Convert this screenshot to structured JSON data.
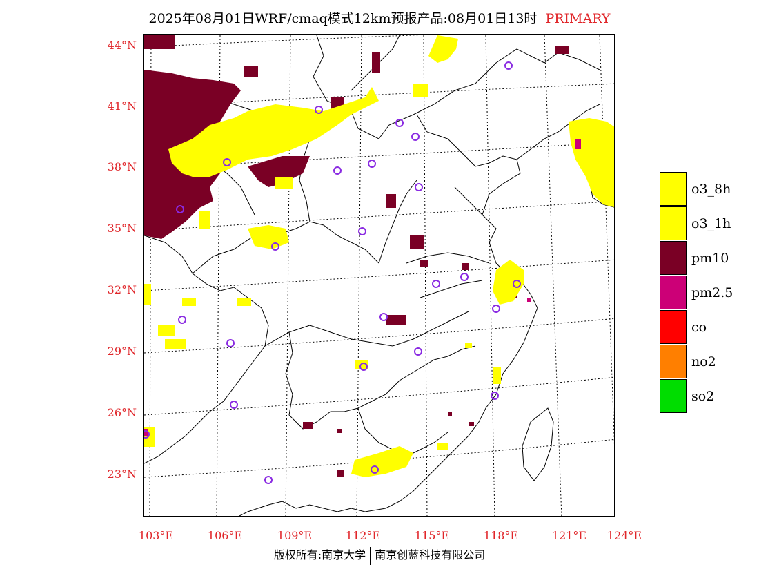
{
  "title": {
    "text": "2025年08月01日WRF/cmaq模式12km预报产品:08月01日13时",
    "tag": "PRIMARY"
  },
  "latitude_labels": [
    "44°N",
    "41°N",
    "38°N",
    "35°N",
    "32°N",
    "29°N",
    "26°N",
    "23°N"
  ],
  "longitude_labels": [
    "103°E",
    "106°E",
    "109°E",
    "112°E",
    "115°E",
    "118°E",
    "121°E",
    "124°E"
  ],
  "legend": [
    {
      "label": "o3_8h",
      "color": "#ffff00"
    },
    {
      "label": "o3_1h",
      "color": "#ffff00"
    },
    {
      "label": "pm10",
      "color": "#7a0025"
    },
    {
      "label": "pm2.5",
      "color": "#cc0077"
    },
    {
      "label": "co",
      "color": "#ff0000"
    },
    {
      "label": "no2",
      "color": "#ff7f00"
    },
    {
      "label": "so2",
      "color": "#00dd00"
    }
  ],
  "footer": {
    "left": "版权所有:南京大学",
    "right": "南京创蓝科技有限公司"
  },
  "station_color": "#8a2be2"
}
